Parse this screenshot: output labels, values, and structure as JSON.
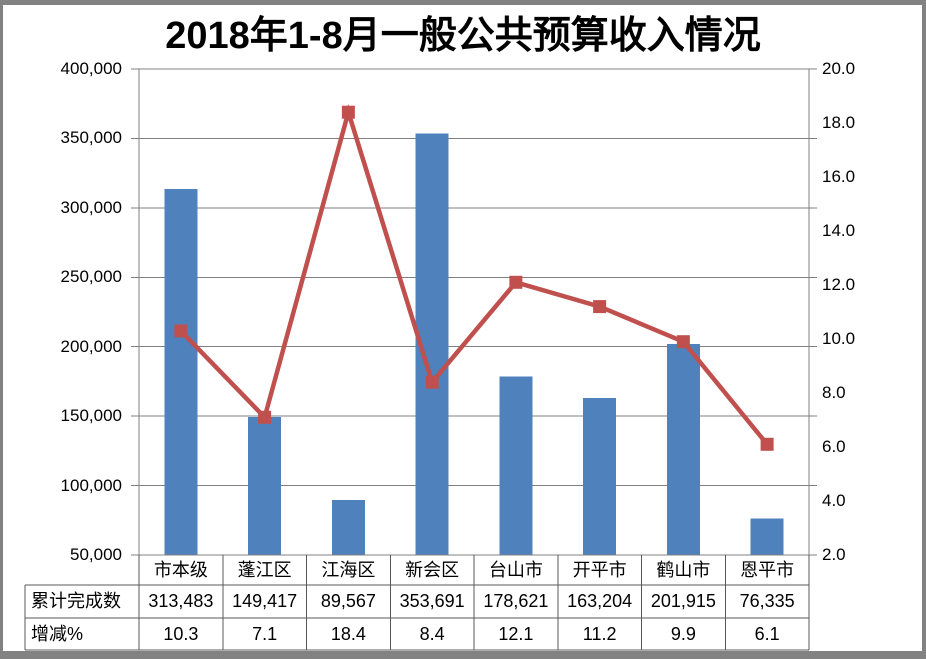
{
  "window": {
    "background": "#ffffff",
    "frame_color": "#828282"
  },
  "chart_data": {
    "type": "combo-bar-line",
    "title": "2018年1-8月一般公共预算收入情况",
    "categories": [
      "市本级",
      "蓬江区",
      "江海区",
      "新会区",
      "台山市",
      "开平市",
      "鹤山市",
      "恩平市"
    ],
    "series": [
      {
        "name": "累计完成数",
        "chart_type": "bar",
        "axis": "left",
        "color": "#4F81BD",
        "values": [
          313483,
          149417,
          89567,
          353691,
          178621,
          163204,
          201915,
          76335
        ]
      },
      {
        "name": "增减%",
        "chart_type": "line",
        "axis": "right",
        "color": "#C0504D",
        "marker": "square",
        "values": [
          10.3,
          7.1,
          18.4,
          8.4,
          12.1,
          11.2,
          9.9,
          6.1
        ]
      }
    ],
    "left_axis": {
      "min": 50000,
      "max": 400000,
      "step": 50000,
      "tick_labels": [
        "400,000",
        "350,000",
        "300,000",
        "250,000",
        "200,000",
        "150,000",
        "100,000",
        "50,000"
      ]
    },
    "right_axis": {
      "min": 2.0,
      "max": 20.0,
      "step": 2.0,
      "tick_labels": [
        "20.0",
        "18.0",
        "16.0",
        "14.0",
        "12.0",
        "10.0",
        "8.0",
        "6.0",
        "4.0",
        "2.0"
      ]
    },
    "gridlines": true,
    "legend": "none",
    "grid_color": "#808080",
    "axis_color": "#808080"
  },
  "data_table": {
    "border_color": "#595959",
    "header_row": [
      "市本级",
      "蓬江区",
      "江海区",
      "新会区",
      "台山市",
      "开平市",
      "鹤山市",
      "恩平市"
    ],
    "rows": [
      {
        "label": "累计完成数",
        "values": [
          "313,483",
          "149,417",
          "89,567",
          "353,691",
          "178,621",
          "163,204",
          "201,915",
          "76,335"
        ]
      },
      {
        "label": "增减%",
        "values": [
          "10.3",
          "7.1",
          "18.4",
          "8.4",
          "12.1",
          "11.2",
          "9.9",
          "6.1"
        ]
      }
    ]
  }
}
